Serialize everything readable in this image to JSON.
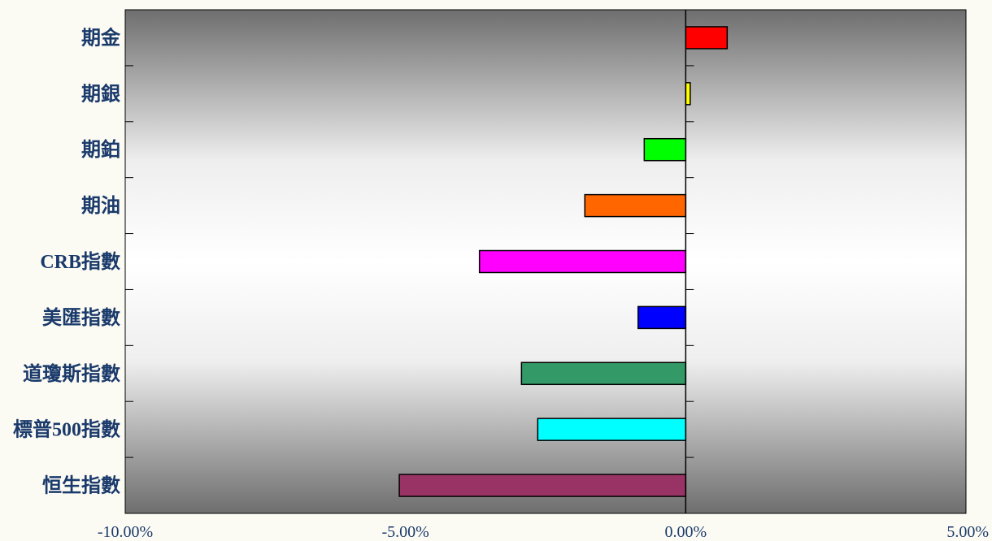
{
  "chart_data": {
    "type": "bar",
    "orientation": "horizontal",
    "categories": [
      "期金",
      "期銀",
      "期鉑",
      "期油",
      "CRB指數",
      "美匯指數",
      "道瓊斯指數",
      "標普500指數",
      "恒生指數"
    ],
    "values": [
      0.74,
      0.08,
      -0.74,
      -1.8,
      -3.68,
      -0.85,
      -2.93,
      -2.64,
      -5.11
    ],
    "bar_colors": [
      "#ff0000",
      "#ffff00",
      "#00ff00",
      "#ff6600",
      "#ff00ff",
      "#0000ff",
      "#339966",
      "#00ffff",
      "#993366"
    ],
    "x_ticks": [
      -10,
      -5,
      0,
      5
    ],
    "x_tick_labels": [
      "-10.00%",
      "-5.00%",
      "0.00%",
      "5.00%"
    ],
    "xlim": [
      -10,
      5
    ],
    "title": "",
    "xlabel": "",
    "ylabel": "",
    "grid": false,
    "legend": "none",
    "plot_background": "gradient gray-white-gray",
    "label_color": "#1a3a6b"
  }
}
